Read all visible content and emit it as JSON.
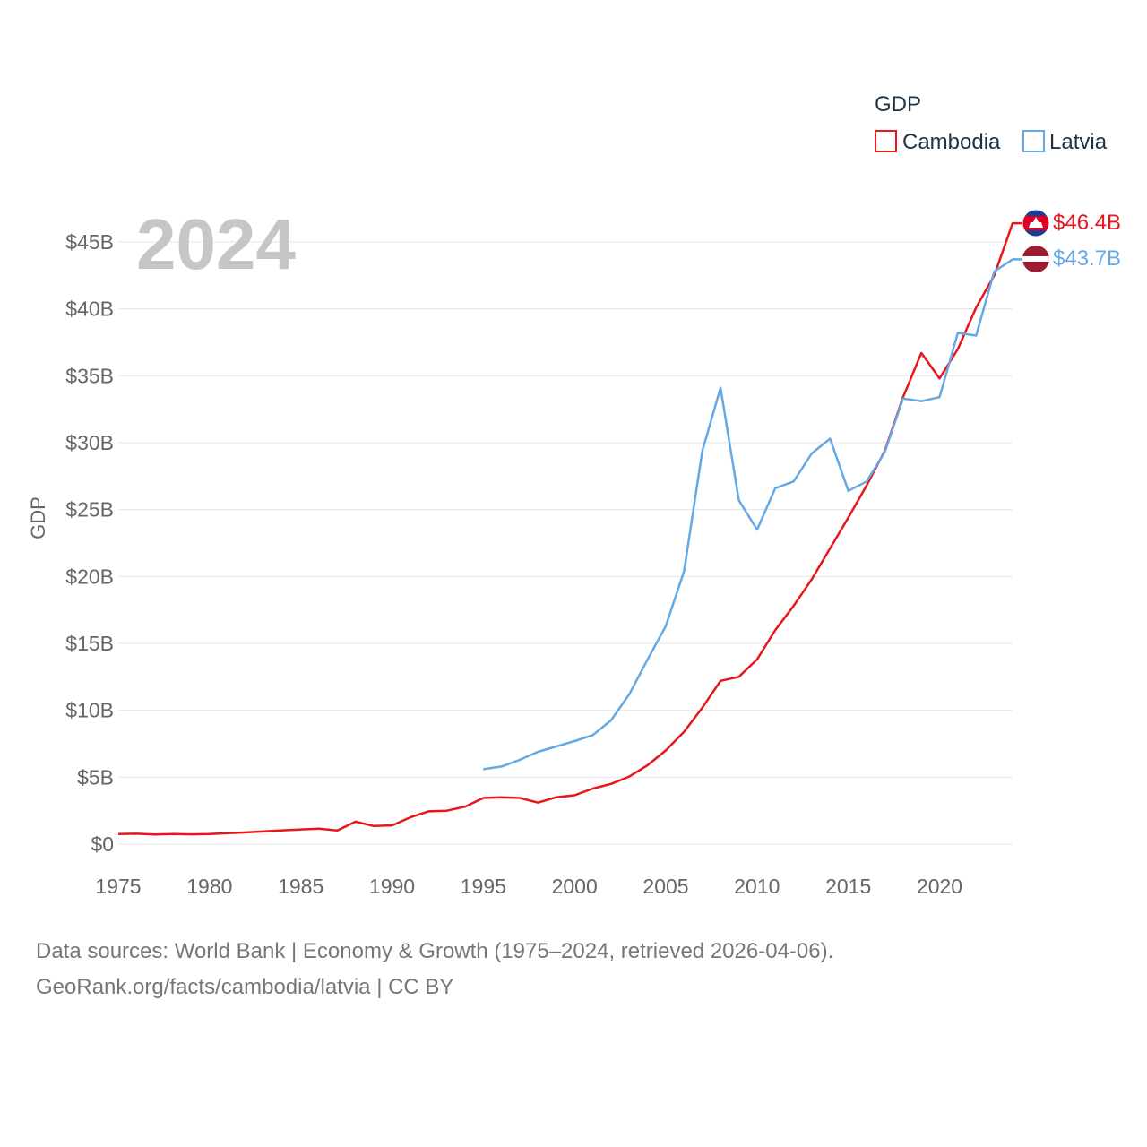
{
  "chart_data": {
    "type": "line",
    "title": "",
    "year_label": "2024",
    "ylabel": "GDP",
    "xlabel": "",
    "xlim": [
      1975,
      2024
    ],
    "ylim": [
      0,
      45
    ],
    "x_ticks": [
      1975,
      1980,
      1985,
      1990,
      1995,
      2000,
      2005,
      2010,
      2015,
      2020
    ],
    "y_ticks": [
      0,
      5,
      10,
      15,
      20,
      25,
      30,
      35,
      40,
      45
    ],
    "y_tick_labels": [
      "$0",
      "$5B",
      "$10B",
      "$15B",
      "$20B",
      "$25B",
      "$30B",
      "$35B",
      "$40B",
      "$45B"
    ],
    "legend": {
      "title": "GDP",
      "position": "top-right"
    },
    "series": [
      {
        "name": "Cambodia",
        "color": "#e8151b",
        "end_label": "$46.4B",
        "flag": "cambodia-flag",
        "x": [
          1975,
          1976,
          1977,
          1978,
          1979,
          1980,
          1981,
          1982,
          1983,
          1984,
          1985,
          1986,
          1987,
          1988,
          1989,
          1990,
          1991,
          1992,
          1993,
          1994,
          1995,
          1996,
          1997,
          1998,
          1999,
          2000,
          2001,
          2002,
          2003,
          2004,
          2005,
          2006,
          2007,
          2008,
          2009,
          2010,
          2011,
          2012,
          2013,
          2014,
          2015,
          2016,
          2017,
          2018,
          2019,
          2020,
          2021,
          2022,
          2023,
          2024
        ],
        "values": [
          0.75,
          0.78,
          0.72,
          0.76,
          0.73,
          0.75,
          0.82,
          0.88,
          0.95,
          1.03,
          1.1,
          1.15,
          1.02,
          1.68,
          1.35,
          1.4,
          2.0,
          2.45,
          2.5,
          2.8,
          3.45,
          3.5,
          3.45,
          3.1,
          3.5,
          3.65,
          4.15,
          4.5,
          5.05,
          5.9,
          7.0,
          8.4,
          10.2,
          12.2,
          12.5,
          13.8,
          16.0,
          17.8,
          19.8,
          22.1,
          24.4,
          26.8,
          29.4,
          33.4,
          36.7,
          34.8,
          37.0,
          40.1,
          42.5,
          46.4
        ]
      },
      {
        "name": "Latvia",
        "color": "#64a9e5",
        "end_label": "$43.7B",
        "flag": "latvia-flag",
        "x": [
          1995,
          1996,
          1997,
          1998,
          1999,
          2000,
          2001,
          2002,
          2003,
          2004,
          2005,
          2006,
          2007,
          2008,
          2009,
          2010,
          2011,
          2012,
          2013,
          2014,
          2015,
          2016,
          2017,
          2018,
          2019,
          2020,
          2021,
          2022,
          2023,
          2024
        ],
        "values": [
          5.6,
          5.8,
          6.3,
          6.9,
          7.3,
          7.7,
          8.15,
          9.25,
          11.2,
          13.8,
          16.3,
          20.4,
          29.4,
          34.1,
          25.7,
          23.5,
          26.6,
          27.1,
          29.2,
          30.3,
          26.4,
          27.1,
          29.3,
          33.3,
          33.1,
          33.4,
          38.2,
          38.0,
          42.8,
          43.7
        ]
      }
    ]
  },
  "footer": {
    "line1": "Data sources: World Bank | Economy & Growth (1975–2024, retrieved 2026-04-06).",
    "line2": "GeoRank.org/facts/cambodia/latvia | CC BY"
  }
}
